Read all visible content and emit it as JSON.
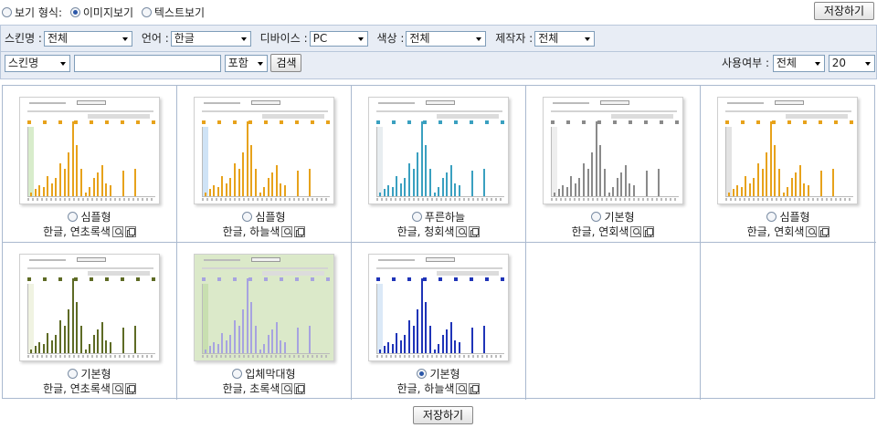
{
  "view_mode": {
    "label": "보기 형식:",
    "options": [
      {
        "label": "이미지보기",
        "selected": true
      },
      {
        "label": "텍스트보기",
        "selected": false
      }
    ]
  },
  "save_label": "저장하기",
  "filters": {
    "skin_name": {
      "label": "스킨명 :",
      "value": "전체"
    },
    "language": {
      "label": "언어 :",
      "value": "한글"
    },
    "device": {
      "label": "디바이스 :",
      "value": "PC"
    },
    "color": {
      "label": "색상 :",
      "value": "전체"
    },
    "maker": {
      "label": "제작자 :",
      "value": "전체"
    }
  },
  "search": {
    "field": "스킨명",
    "query": "",
    "match": "포함",
    "button": "검색",
    "usage_label": "사용여부 :",
    "usage_value": "전체",
    "page_size": "20"
  },
  "skins": [
    {
      "name": "심플형",
      "desc": "한글, 연초록색",
      "selected": false,
      "theme": {
        "bar": "#e7a21b",
        "bg": "#ffffff",
        "side": "#d8eccb"
      }
    },
    {
      "name": "심플형",
      "desc": "한글, 하늘색",
      "selected": false,
      "theme": {
        "bar": "#e7a21b",
        "bg": "#ffffff",
        "side": "#cfe3f6"
      }
    },
    {
      "name": "푸른하늘",
      "desc": "한글, 청회색",
      "selected": false,
      "theme": {
        "bar": "#3aa0c0",
        "bg": "#ffffff",
        "side": "#e8edf0"
      }
    },
    {
      "name": "기본형",
      "desc": "한글, 연회색",
      "selected": false,
      "theme": {
        "bar": "#8a8a8a",
        "bg": "#ffffff",
        "side": "#eeeeee"
      }
    },
    {
      "name": "심플형",
      "desc": "한글, 연회색",
      "selected": false,
      "theme": {
        "bar": "#e7a21b",
        "bg": "#ffffff",
        "side": "#e3e3e3"
      }
    },
    {
      "name": "기본형",
      "desc": "한글, 연초록색",
      "selected": false,
      "theme": {
        "bar": "#5e6b25",
        "bg": "#ffffff",
        "side": "#f0f3e2"
      }
    },
    {
      "name": "입체막대형",
      "desc": "한글, 초록색",
      "selected": false,
      "theme": {
        "bar": "#a7a3e0",
        "bg": "#dbe9c9",
        "side": "#c8dfb0"
      }
    },
    {
      "name": "기본형",
      "desc": "한글, 하늘색",
      "selected": true,
      "theme": {
        "bar": "#1f34b8",
        "bg": "#ffffff",
        "side": "#dbe9f7"
      }
    }
  ]
}
